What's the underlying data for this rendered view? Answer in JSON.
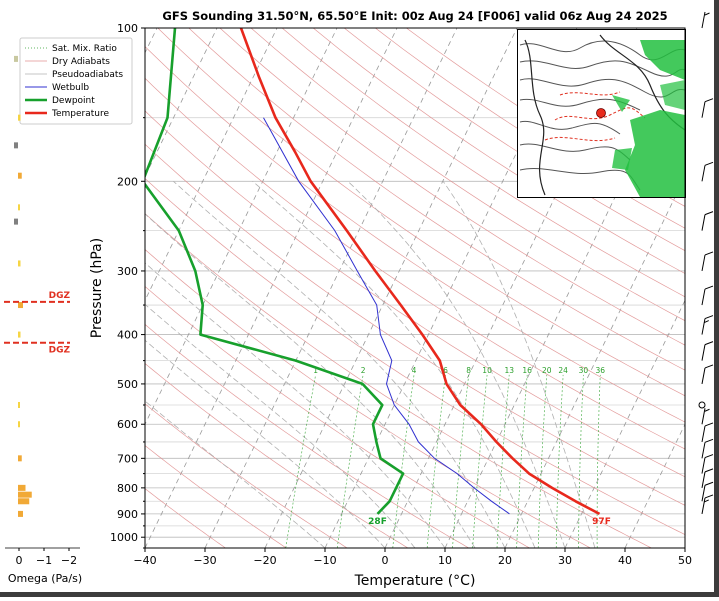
{
  "title": "GFS Sounding 31.50°N, 65.50°E Init: 00z Aug 24 [F006] valid 06z Aug 24 2025",
  "colors": {
    "temperature": "#e8281c",
    "dewpoint": "#17a02c",
    "wetbulb": "#3030d0",
    "dry_adiabat": "#e09090",
    "pseudoadiabat": "#b0b0b0",
    "mixing_ratio": "#2ca02c",
    "dgz": "#e03020",
    "omega": "#f0a020"
  },
  "legend": {
    "items": [
      {
        "label": "Sat. Mix. Ratio",
        "style": "dotted-green"
      },
      {
        "label": "Dry Adiabats",
        "style": "solid-pink"
      },
      {
        "label": "Pseudoadiabats",
        "style": "solid-gray"
      },
      {
        "label": "Wetbulb",
        "style": "solid-blue"
      },
      {
        "label": "Dewpoint",
        "style": "thick-green"
      },
      {
        "label": "Temperature",
        "style": "thick-red"
      }
    ]
  },
  "chart_data": {
    "type": "line",
    "subtype": "skew-t log-p",
    "title": "GFS Sounding 31.50°N, 65.50°E Init: 00z Aug 24 [F006] valid 06z Aug 24 2025",
    "xlabel": "Temperature (°C)",
    "ylabel": "Pressure (hPa)",
    "xlim": [
      -40,
      50
    ],
    "ylim": [
      1050,
      100
    ],
    "y_scale": "log",
    "x_ticks": [
      "−40",
      "−30",
      "−20",
      "−10",
      "0",
      "10",
      "20",
      "30",
      "40",
      "50"
    ],
    "y_ticks": [
      "100",
      "200",
      "300",
      "400",
      "500",
      "600",
      "700",
      "800",
      "900",
      "1000"
    ],
    "series": [
      {
        "name": "Temperature",
        "pressure": [
          900,
          850,
          800,
          750,
          700,
          650,
          600,
          550,
          500,
          450,
          400,
          350,
          300,
          250,
          200,
          175,
          150,
          125,
          100
        ],
        "temperature_c": [
          33,
          28,
          23,
          18,
          14,
          10,
          6,
          1,
          -3,
          -6,
          -11,
          -17,
          -24,
          -32,
          -42,
          -47,
          -53,
          -59,
          -66
        ]
      },
      {
        "name": "Dewpoint",
        "pressure": [
          900,
          850,
          800,
          750,
          700,
          650,
          600,
          550,
          500,
          450,
          400,
          350,
          300,
          250,
          200,
          150,
          100
        ],
        "dewpoint_c": [
          -4,
          -3,
          -3,
          -3,
          -8,
          -10,
          -12,
          -12,
          -17,
          -30,
          -48,
          -50,
          -54,
          -60,
          -70,
          -71,
          -77
        ]
      },
      {
        "name": "Wetbulb",
        "pressure": [
          900,
          850,
          800,
          750,
          700,
          650,
          600,
          550,
          500,
          450,
          400,
          350,
          300,
          250,
          200,
          150
        ],
        "wetbulb_c": [
          18,
          14,
          10,
          6,
          1,
          -3,
          -6,
          -10,
          -13,
          -14,
          -18,
          -21,
          -27,
          -34,
          -44,
          -55
        ]
      }
    ],
    "surface": {
      "temperature_label": "97F",
      "dewpoint_label": "28F",
      "pressure": 900
    },
    "mixing_ratio_labels": [
      "1",
      "2",
      "4",
      "6",
      "8",
      "10",
      "13",
      "16",
      "20",
      "24",
      "30",
      "36"
    ],
    "dgz_label": "DGZ",
    "dgz_levels_hpa": [
      345,
      415
    ],
    "omega": {
      "xlabel": "Omega (Pa/s)",
      "x_ticks": [
        "0",
        "−1",
        "−2"
      ],
      "levels_hpa": [
        900,
        850,
        825,
        800,
        700,
        600,
        550,
        400,
        350,
        290,
        225,
        195,
        150
      ],
      "values": [
        -0.2,
        -0.45,
        -0.55,
        -0.3,
        -0.15,
        -0.05,
        -0.05,
        -0.1,
        -0.2,
        -0.1,
        -0.05,
        -0.15,
        -0.1
      ]
    },
    "wind_barbs": {
      "levels_hpa": [
        900,
        850,
        800,
        750,
        700,
        650,
        600,
        550,
        500,
        450,
        400,
        350,
        300,
        250,
        200,
        150,
        100
      ],
      "speed_kt": [
        15,
        10,
        10,
        10,
        10,
        10,
        5,
        0,
        10,
        10,
        15,
        10,
        10,
        10,
        10,
        10,
        5
      ]
    },
    "grid": true
  }
}
